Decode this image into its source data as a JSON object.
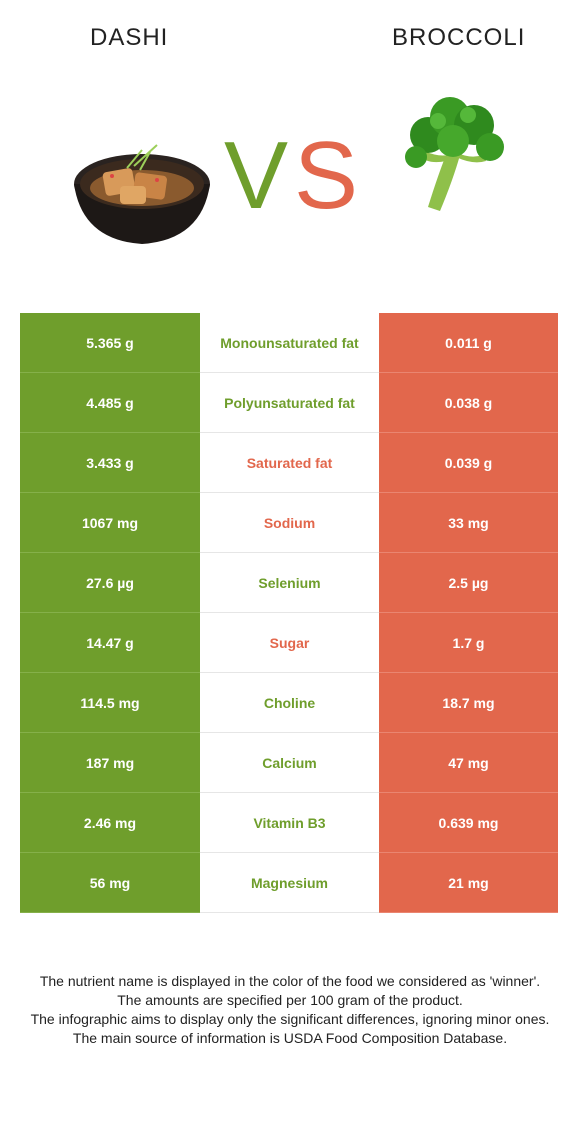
{
  "header": {
    "left_food": "DASHI",
    "right_food": "BROCCOLI",
    "vs_v": "V",
    "vs_s": "S",
    "left_image": "dashi-soup-bowl",
    "right_image": "broccoli-floret"
  },
  "colors": {
    "left_accent": "#6f9e2c",
    "right_accent": "#e2674c"
  },
  "rows": [
    {
      "nutrient": "Monounsaturated fat",
      "left": "5.365 g",
      "right": "0.011 g",
      "winner": "left"
    },
    {
      "nutrient": "Polyunsaturated fat",
      "left": "4.485 g",
      "right": "0.038 g",
      "winner": "left"
    },
    {
      "nutrient": "Saturated fat",
      "left": "3.433 g",
      "right": "0.039 g",
      "winner": "right"
    },
    {
      "nutrient": "Sodium",
      "left": "1067 mg",
      "right": "33 mg",
      "winner": "right"
    },
    {
      "nutrient": "Selenium",
      "left": "27.6 µg",
      "right": "2.5 µg",
      "winner": "left"
    },
    {
      "nutrient": "Sugar",
      "left": "14.47 g",
      "right": "1.7 g",
      "winner": "right"
    },
    {
      "nutrient": "Choline",
      "left": "114.5 mg",
      "right": "18.7 mg",
      "winner": "left"
    },
    {
      "nutrient": "Calcium",
      "left": "187 mg",
      "right": "47 mg",
      "winner": "left"
    },
    {
      "nutrient": "Vitamin B3",
      "left": "2.46 mg",
      "right": "0.639 mg",
      "winner": "left"
    },
    {
      "nutrient": "Magnesium",
      "left": "56 mg",
      "right": "21 mg",
      "winner": "left"
    }
  ],
  "footnote": {
    "line1": "The nutrient name is displayed in the color of the food we considered as 'winner'.",
    "line2": "The amounts are specified per 100 gram of the product.",
    "line3": "The infographic aims to display only the significant differences, ignoring minor ones.",
    "line4": "The main source of information is USDA Food Composition Database."
  }
}
